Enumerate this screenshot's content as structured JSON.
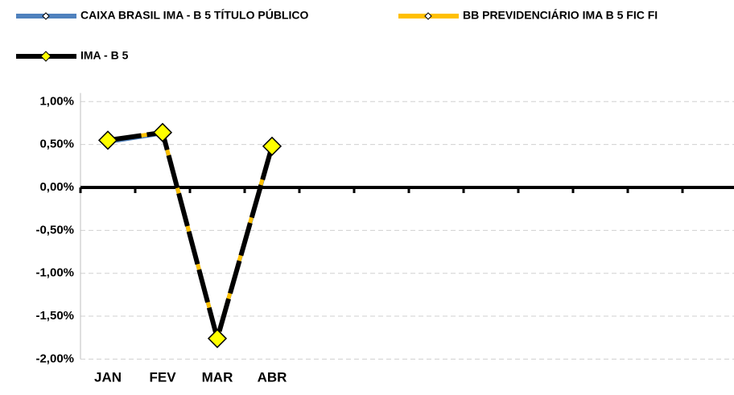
{
  "chart_data": {
    "type": "line",
    "categories": [
      "JAN",
      "FEV",
      "MAR",
      "ABR",
      null,
      null,
      null,
      null,
      null,
      null,
      null,
      null
    ],
    "series": [
      {
        "name": "CAIXA BRASIL IMA - B 5 TÍTULO PÚBLICO",
        "color": "#4f81bd",
        "marker": false,
        "values": [
          0.53,
          0.63,
          -1.75,
          0.47,
          null,
          null,
          null,
          null,
          null,
          null,
          null,
          null
        ]
      },
      {
        "name": "BB PREVIDENCIÁRIO IMA B 5 FIC FI",
        "color": "#ffc000",
        "marker": false,
        "values": [
          0.55,
          0.64,
          -1.75,
          0.49,
          null,
          null,
          null,
          null,
          null,
          null,
          null,
          null
        ]
      },
      {
        "name": "IMA - B 5",
        "color": "#000000",
        "marker": true,
        "values": [
          0.55,
          0.64,
          -1.76,
          0.48,
          null,
          null,
          null,
          null,
          null,
          null,
          null,
          null
        ]
      }
    ],
    "ylim": [
      -2,
      1.1
    ],
    "yticks": [
      {
        "value": 1,
        "label": "1,00%"
      },
      {
        "value": 0.5,
        "label": "0,50%"
      },
      {
        "value": 0,
        "label": "0,00%"
      },
      {
        "value": -0.5,
        "label": "-0,50%"
      },
      {
        "value": -1,
        "label": "-1,00%"
      },
      {
        "value": -1.5,
        "label": "-1,50%"
      },
      {
        "value": -2,
        "label": "-2,00%"
      }
    ],
    "grid": true,
    "legend": "top"
  }
}
